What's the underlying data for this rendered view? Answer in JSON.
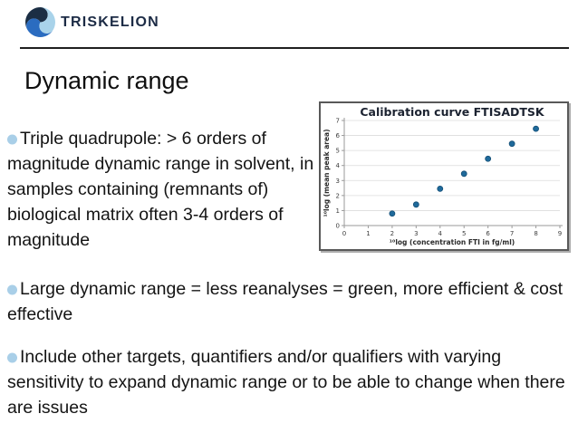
{
  "header": {
    "brand": "TRISKELION",
    "logo_colors": {
      "dark": "#1b2e44",
      "medium": "#2b6cc0",
      "light": "#a9d3ea"
    }
  },
  "title": "Dynamic range",
  "bullets": [
    "Triple quadrupole: > 6 orders of magnitude dynamic range in solvent, in samples containing (remnants of) biological matrix often 3-4 orders of magnitude",
    "Large dynamic range = less reanalyses = green, more efficient & cost effective",
    "Include other targets, quantifiers and/or qualifiers with varying sensitivity to expand dynamic range or to be able to change when there are issues"
  ],
  "colors": {
    "bullet_dot": "#a9cfe8",
    "brand_navy": "#1c2b45",
    "chart_point": "#1f6a9b"
  },
  "chart_data": {
    "type": "scatter",
    "title": "Calibration curve FTISADTSK",
    "xlabel": "¹⁰log (concentration FTI in fg/ml)",
    "ylabel": "¹⁰log (mean peak area)",
    "xlim": [
      0,
      9
    ],
    "ylim": [
      0,
      7
    ],
    "xticks": [
      0,
      1,
      2,
      3,
      4,
      5,
      6,
      7,
      8,
      9
    ],
    "yticks": [
      0,
      1,
      2,
      3,
      4,
      5,
      6,
      7
    ],
    "points": [
      {
        "x": 2,
        "y": 0.8
      },
      {
        "x": 3,
        "y": 1.4
      },
      {
        "x": 4,
        "y": 2.45
      },
      {
        "x": 5,
        "y": 3.45
      },
      {
        "x": 6,
        "y": 4.45
      },
      {
        "x": 7,
        "y": 5.45
      },
      {
        "x": 8,
        "y": 6.45
      }
    ],
    "grid": "horizontal",
    "legend": "none",
    "point_color": "#1f6a9b",
    "point_edge_color": "#144e75"
  }
}
